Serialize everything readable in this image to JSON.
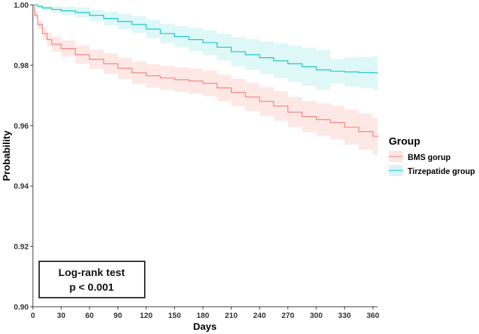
{
  "chart_data": {
    "type": "line",
    "xlabel": "Days",
    "ylabel": "Probability",
    "xlim": [
      0,
      365
    ],
    "ylim": [
      0.9,
      1.0
    ],
    "xticks": [
      "0",
      "30",
      "60",
      "90",
      "120",
      "150",
      "180",
      "210",
      "240",
      "270",
      "300",
      "330",
      "360"
    ],
    "yticks": [
      "0.90",
      "0.92",
      "0.94",
      "0.96",
      "0.98",
      "1.00"
    ],
    "grid": false,
    "legend": {
      "title": "Group",
      "position": "right"
    },
    "annotation": {
      "line1": "Log-rank test",
      "line2": "p < 0.001"
    },
    "series": [
      {
        "name": "BMS gorup",
        "color": "#F8766D",
        "x": [
          0,
          2,
          5,
          10,
          15,
          20,
          30,
          45,
          60,
          75,
          90,
          105,
          120,
          135,
          150,
          165,
          180,
          195,
          210,
          225,
          240,
          255,
          270,
          285,
          300,
          315,
          330,
          345,
          360,
          365
        ],
        "y": [
          1.0,
          0.9965,
          0.9935,
          0.9905,
          0.9885,
          0.987,
          0.9855,
          0.9835,
          0.982,
          0.9805,
          0.979,
          0.9775,
          0.9765,
          0.9758,
          0.9752,
          0.9748,
          0.974,
          0.9725,
          0.971,
          0.9695,
          0.968,
          0.9665,
          0.9645,
          0.963,
          0.962,
          0.961,
          0.9595,
          0.958,
          0.9565,
          0.9562
        ],
        "lower": [
          1.0,
          0.9955,
          0.992,
          0.9885,
          0.9862,
          0.9845,
          0.9828,
          0.9805,
          0.9788,
          0.9771,
          0.9754,
          0.9738,
          0.9726,
          0.9718,
          0.9711,
          0.9706,
          0.9697,
          0.9681,
          0.9665,
          0.9648,
          0.9632,
          0.9616,
          0.9595,
          0.9578,
          0.9566,
          0.9554,
          0.9537,
          0.952,
          0.9504,
          0.95
        ],
        "upper": [
          1.0,
          0.9975,
          0.995,
          0.9925,
          0.9908,
          0.9895,
          0.9882,
          0.9865,
          0.9852,
          0.9839,
          0.9826,
          0.9812,
          0.9804,
          0.9798,
          0.9793,
          0.979,
          0.9783,
          0.9769,
          0.9755,
          0.9742,
          0.9728,
          0.9714,
          0.9695,
          0.9682,
          0.9674,
          0.9666,
          0.9653,
          0.964,
          0.9626,
          0.9624
        ]
      },
      {
        "name": "Tirzepatide group",
        "color": "#00BFC4",
        "x": [
          0,
          5,
          10,
          20,
          30,
          45,
          60,
          75,
          90,
          105,
          120,
          135,
          150,
          165,
          180,
          195,
          210,
          225,
          240,
          255,
          270,
          285,
          300,
          315,
          330,
          345,
          360,
          365
        ],
        "y": [
          1.0,
          0.9995,
          0.999,
          0.9985,
          0.998,
          0.9975,
          0.9965,
          0.9955,
          0.9945,
          0.9935,
          0.992,
          0.9905,
          0.9895,
          0.9885,
          0.9875,
          0.986,
          0.9845,
          0.9835,
          0.9825,
          0.9815,
          0.9805,
          0.9795,
          0.9785,
          0.978,
          0.9778,
          0.9776,
          0.9775,
          0.9774
        ],
        "lower": [
          1.0,
          0.999,
          0.9982,
          0.9974,
          0.9966,
          0.9958,
          0.9946,
          0.9933,
          0.992,
          0.9907,
          0.989,
          0.9873,
          0.986,
          0.9847,
          0.9834,
          0.9816,
          0.9797,
          0.9784,
          0.9771,
          0.9758,
          0.9745,
          0.9732,
          0.9719,
          0.974,
          0.973,
          0.9725,
          0.972,
          0.9718
        ],
        "upper": [
          1.0,
          1.0,
          0.9998,
          0.9996,
          0.9994,
          0.9992,
          0.9984,
          0.9977,
          0.997,
          0.9963,
          0.995,
          0.9937,
          0.993,
          0.9923,
          0.9916,
          0.9904,
          0.9893,
          0.9886,
          0.9879,
          0.9872,
          0.9865,
          0.9858,
          0.9851,
          0.982,
          0.9826,
          0.9827,
          0.983,
          0.983
        ]
      }
    ]
  }
}
